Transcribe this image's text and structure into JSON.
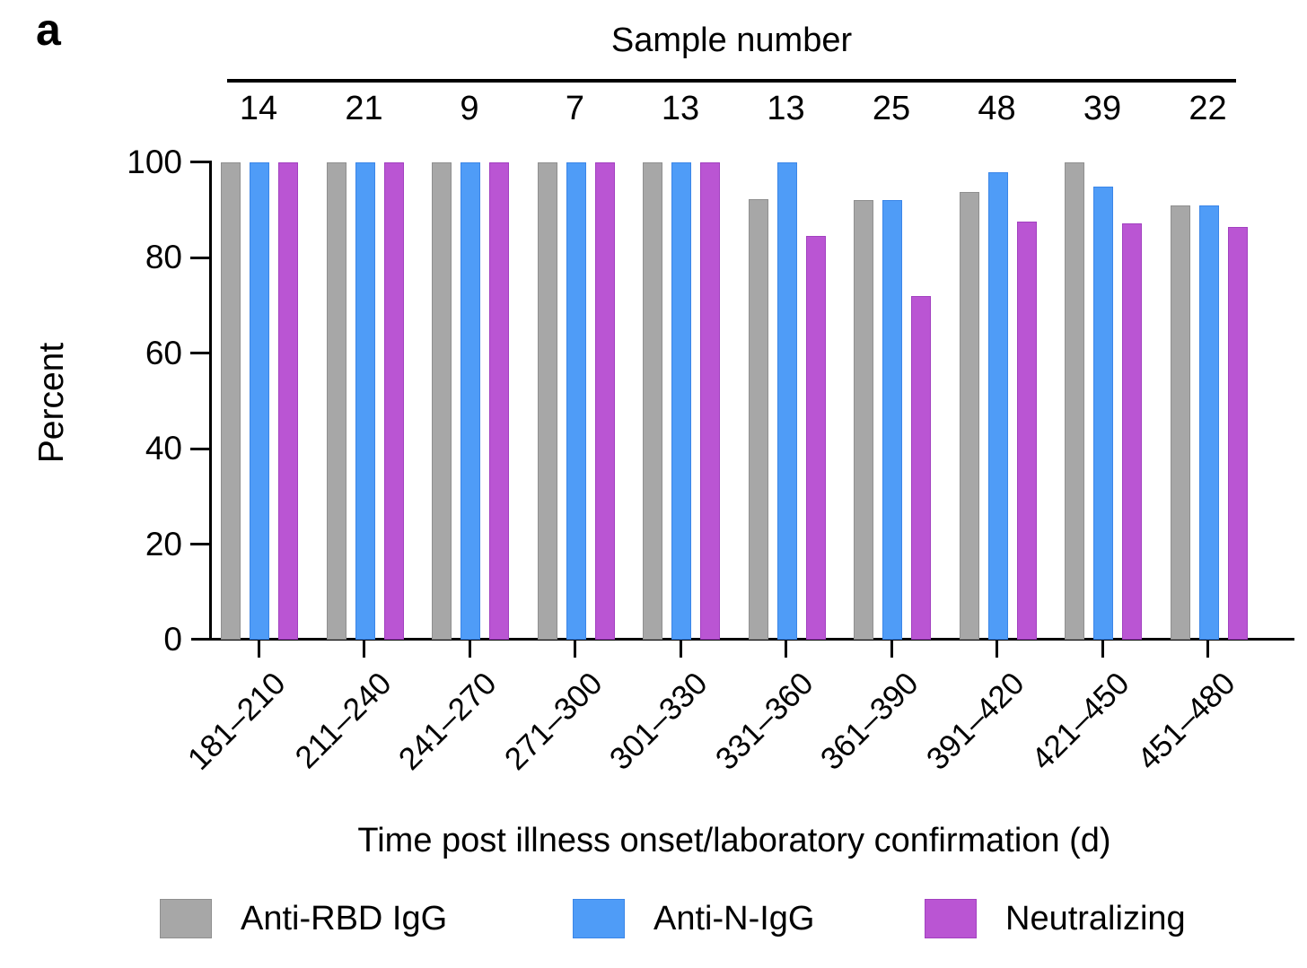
{
  "panel_label": "a",
  "chart_data": {
    "type": "bar",
    "title": "Sample number",
    "categories": [
      "181–210",
      "211–240",
      "241–270",
      "271–300",
      "301–330",
      "331–360",
      "361–390",
      "391–420",
      "421–450",
      "451–480"
    ],
    "sample_numbers": [
      "14",
      "21",
      "9",
      "7",
      "13",
      "13",
      "25",
      "48",
      "39",
      "22"
    ],
    "series": [
      {
        "name": "Anti-RBD IgG",
        "color": "#a7a7a7",
        "edge_color": "#8f8f8f",
        "values": [
          100,
          100,
          100,
          100,
          100,
          92.3,
          92,
          93.8,
          100,
          90.9
        ]
      },
      {
        "name": "Anti-N-IgG",
        "color": "#4f9cf7",
        "edge_color": "#3b86e8",
        "values": [
          100,
          100,
          100,
          100,
          100,
          100,
          92,
          97.9,
          94.9,
          90.9
        ]
      },
      {
        "name": "Neutralizing",
        "color": "#ba55d3",
        "edge_color": "#a241c0",
        "values": [
          100,
          100,
          100,
          100,
          100,
          84.6,
          72,
          87.5,
          87.2,
          86.4
        ]
      }
    ],
    "xlabel": "Time post illness onset/laboratory confirmation (d)",
    "ylabel": "Percent",
    "ylim": [
      0,
      100
    ],
    "yticks": [
      0,
      20,
      40,
      60,
      80,
      100
    ],
    "grid": false,
    "legend_position": "bottom",
    "axis_color": "#000000",
    "background_color": "#ffffff"
  }
}
